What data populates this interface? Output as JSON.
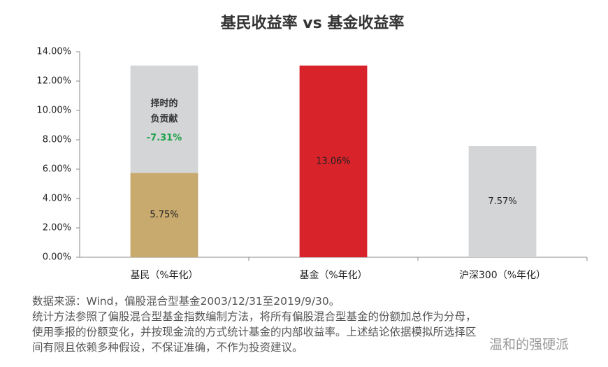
{
  "chart_data": {
    "type": "bar",
    "title": "基民收益率 vs 基金收益率",
    "categories": [
      "基民（%年化）",
      "基金（%年化）",
      "沪深300（%年化）"
    ],
    "series": [
      {
        "colors": [
          "#c8a96e",
          "#d9232a",
          "#d3d5d7"
        ],
        "values": [
          5.75,
          13.06,
          7.57
        ],
        "value_labels": [
          "5.75%",
          "13.06%",
          "7.57%"
        ]
      },
      {
        "name": "择时的负贡献",
        "color": "#d3d5d7",
        "values": [
          -7.31,
          null,
          null
        ],
        "value_labels": [
          "-7.31%",
          null,
          null
        ],
        "label_color": "#1fa34a"
      }
    ],
    "ylim": [
      0,
      14
    ],
    "yticks": [
      {
        "value": 0,
        "label": "0.00%"
      },
      {
        "value": 2,
        "label": "2.00%"
      },
      {
        "value": 4,
        "label": "4.00%"
      },
      {
        "value": 6,
        "label": "6.00%"
      },
      {
        "value": 8,
        "label": "8.00%"
      },
      {
        "value": 10,
        "label": "10.00%"
      },
      {
        "value": 12,
        "label": "12.00%"
      },
      {
        "value": 14,
        "label": "14.00%"
      }
    ],
    "grid": false
  },
  "notes": [
    "数据来源：Wind，偏股混合型基金2003/12/31至2019/9/30。",
    "统计方法参照了偏股混合型基金指数编制方法，将所有偏股混合型基金的份额加总作为分母，",
    "使用季报的份额变化，并按现金流的方式统计基金的内部收益率。上述结论依据模拟所选择区",
    "间有限且依赖多种假设，不保证准确，不作为投资建议。"
  ],
  "watermark": "温和的强硬派"
}
